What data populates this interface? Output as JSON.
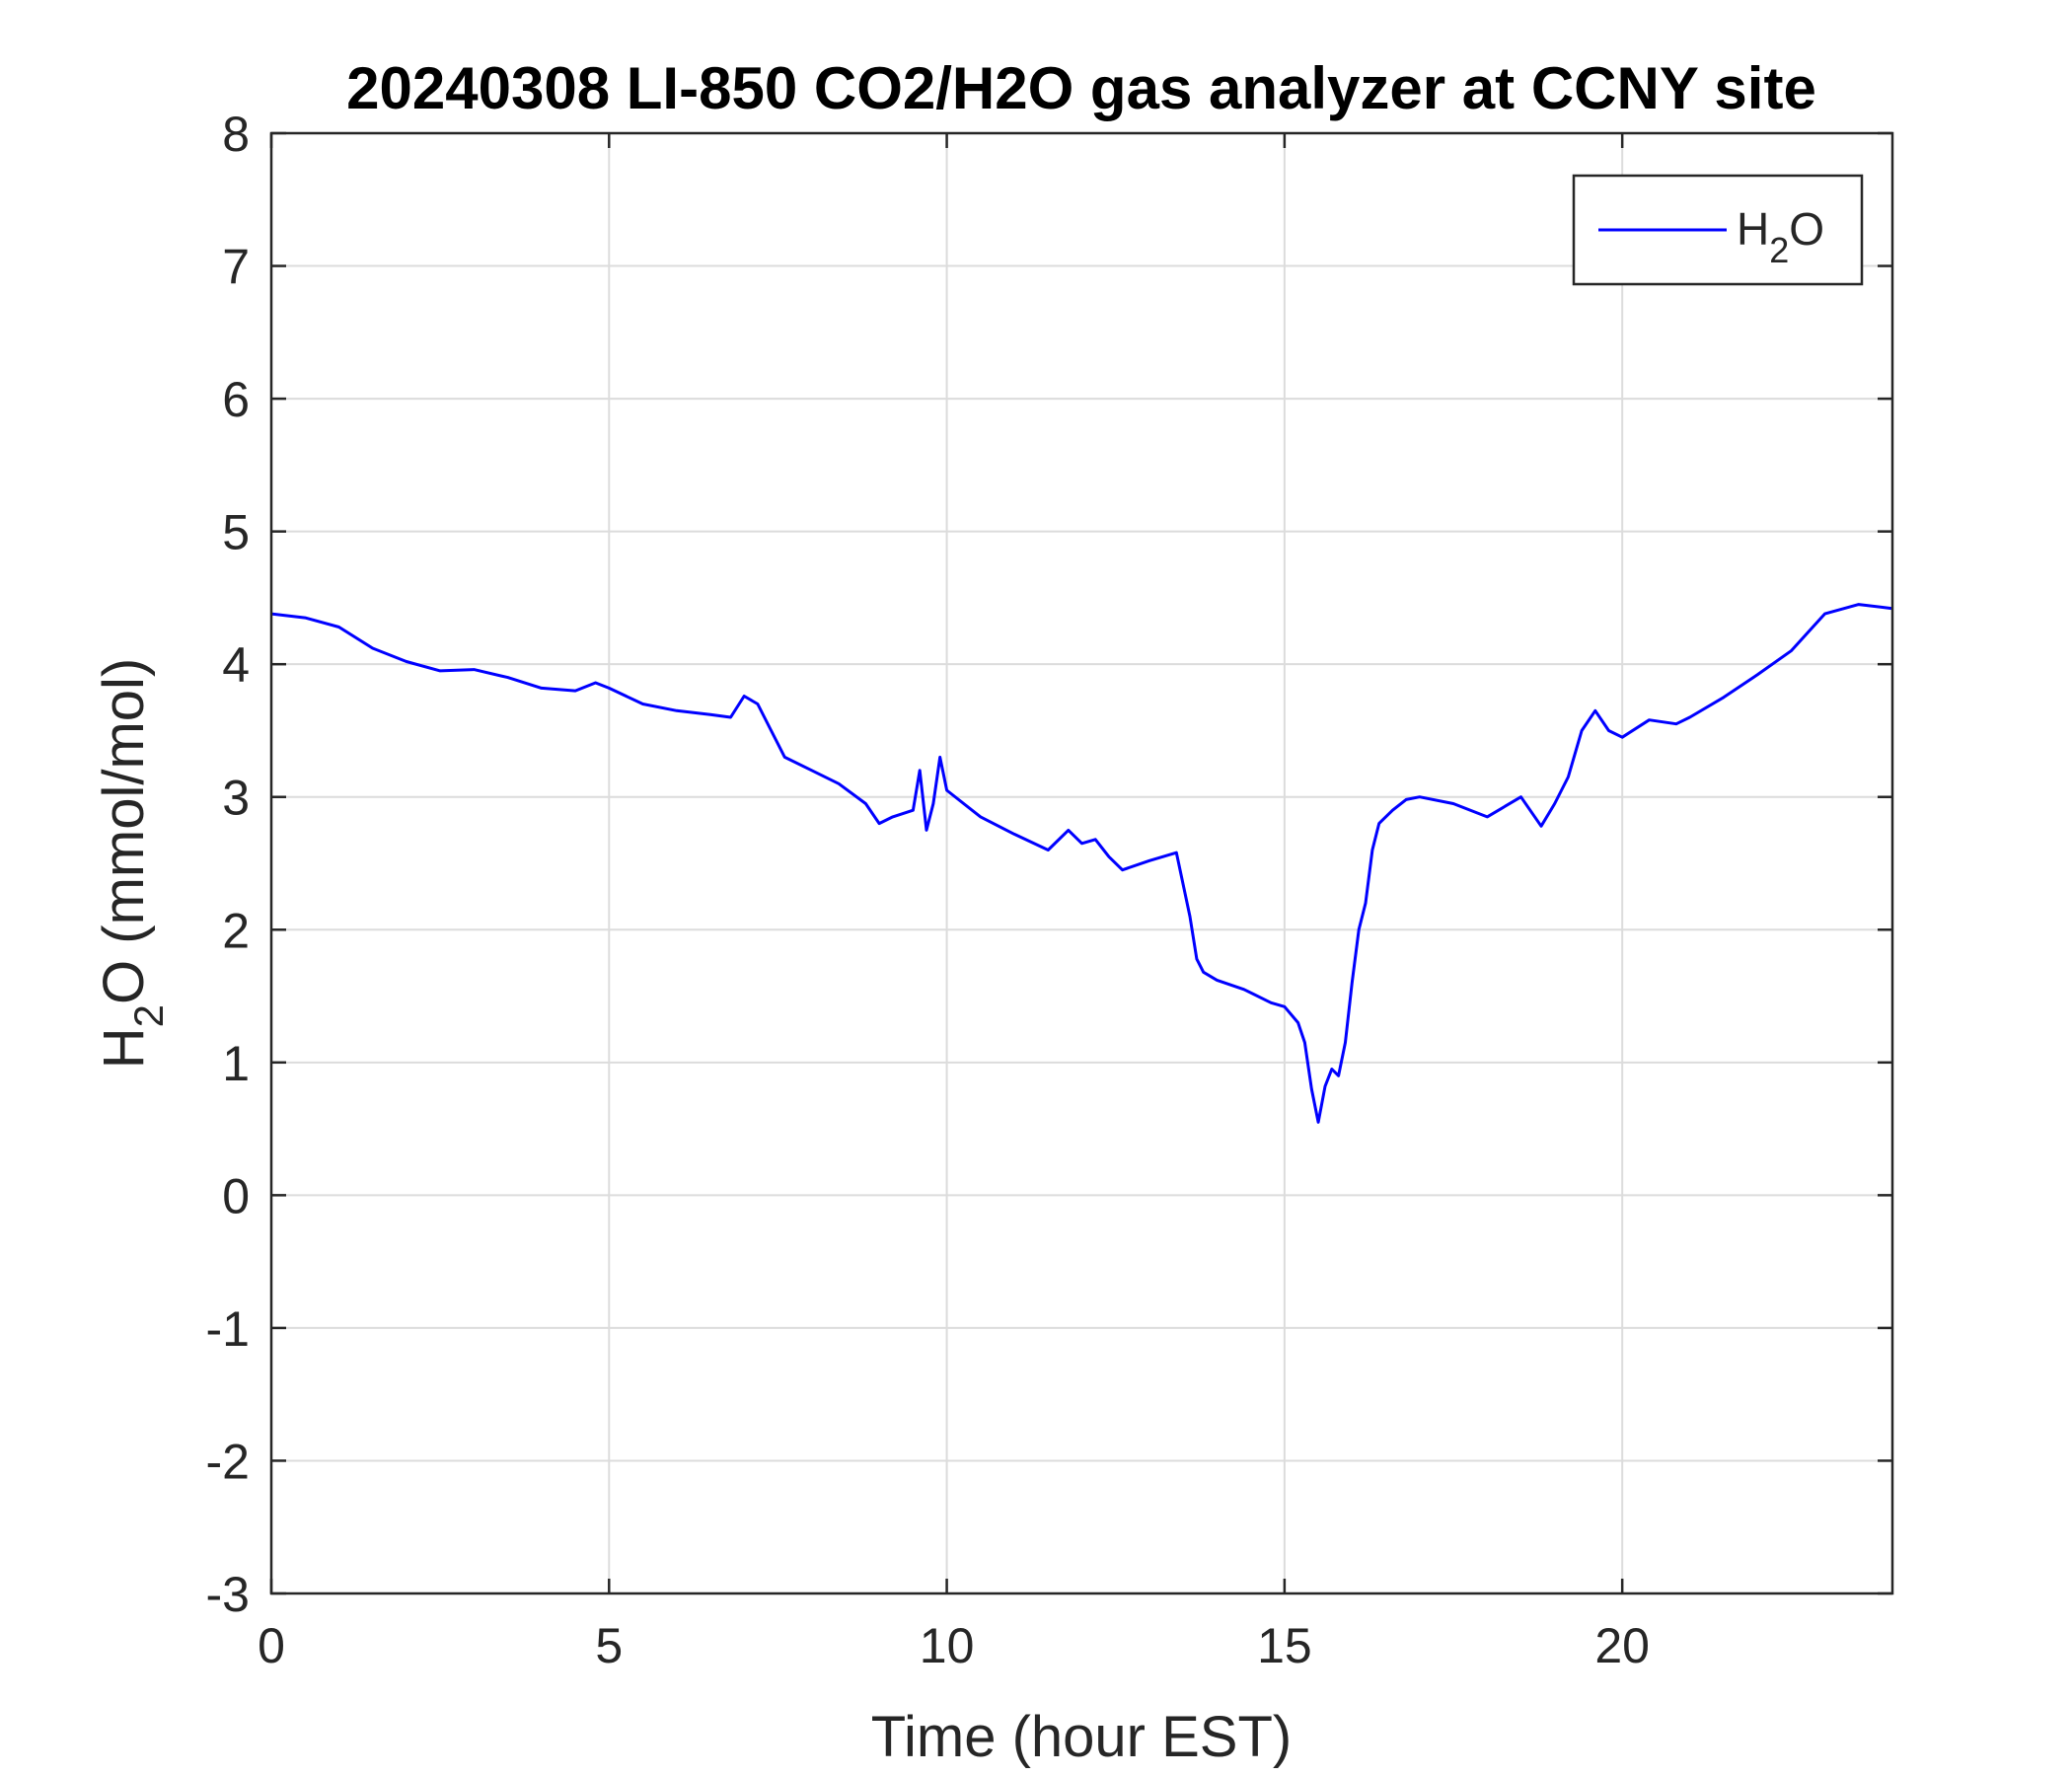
{
  "chart_data": {
    "type": "line",
    "title": "20240308 LI-850 CO2/H2O gas analyzer at CCNY site",
    "xlabel": "Time (hour EST)",
    "ylabel": {
      "base": "H",
      "sub": "2",
      "rest": "O (mmol/mol)"
    },
    "xlim": [
      0,
      24
    ],
    "ylim": [
      -3,
      8
    ],
    "xticks": [
      0,
      5,
      10,
      15,
      20
    ],
    "yticks": [
      -3,
      -2,
      -1,
      0,
      1,
      2,
      3,
      4,
      5,
      6,
      7,
      8
    ],
    "grid": true,
    "legend_position": "top-right",
    "legend": {
      "base": "H",
      "sub": "2",
      "rest": "O"
    },
    "series": [
      {
        "color": "#0000ff",
        "x": [
          0,
          0.5,
          1.0,
          1.5,
          2.0,
          2.5,
          3.0,
          3.5,
          4.0,
          4.5,
          4.8,
          5.0,
          5.5,
          6.0,
          6.5,
          6.8,
          7.0,
          7.2,
          7.4,
          7.6,
          8.0,
          8.4,
          8.8,
          9.0,
          9.2,
          9.5,
          9.6,
          9.7,
          9.8,
          9.9,
          10.0,
          10.5,
          11.0,
          11.5,
          11.8,
          12.0,
          12.2,
          12.4,
          12.6,
          13.0,
          13.4,
          13.6,
          13.7,
          13.8,
          14.0,
          14.4,
          14.8,
          15.0,
          15.2,
          15.3,
          15.4,
          15.5,
          15.6,
          15.7,
          15.8,
          15.9,
          16.0,
          16.1,
          16.2,
          16.3,
          16.4,
          16.6,
          16.8,
          17.0,
          17.5,
          18.0,
          18.5,
          18.8,
          19.0,
          19.2,
          19.4,
          19.6,
          19.8,
          20.0,
          20.4,
          20.8,
          21.0,
          21.5,
          22.0,
          22.5,
          23.0,
          23.5,
          24.0
        ],
        "y": [
          4.38,
          4.35,
          4.28,
          4.12,
          4.02,
          3.95,
          3.96,
          3.9,
          3.82,
          3.8,
          3.86,
          3.82,
          3.7,
          3.65,
          3.62,
          3.6,
          3.76,
          3.7,
          3.5,
          3.3,
          3.2,
          3.1,
          2.95,
          2.8,
          2.85,
          2.9,
          3.2,
          2.75,
          2.95,
          3.3,
          3.05,
          2.85,
          2.72,
          2.6,
          2.75,
          2.65,
          2.68,
          2.55,
          2.45,
          2.52,
          2.58,
          2.1,
          1.78,
          1.68,
          1.62,
          1.55,
          1.45,
          1.42,
          1.3,
          1.15,
          0.8,
          0.55,
          0.82,
          0.95,
          0.9,
          1.15,
          1.6,
          2.0,
          2.2,
          2.6,
          2.8,
          2.9,
          2.98,
          3.0,
          2.95,
          2.85,
          3.0,
          2.78,
          2.95,
          3.15,
          3.5,
          3.65,
          3.5,
          3.45,
          3.58,
          3.55,
          3.6,
          3.75,
          3.92,
          4.1,
          4.38,
          4.45,
          4.42
        ]
      }
    ]
  }
}
